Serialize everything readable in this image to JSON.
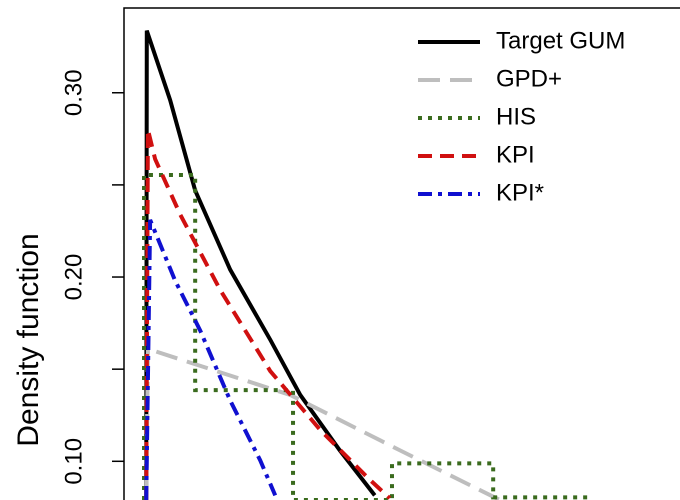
{
  "chart_data": {
    "type": "line",
    "y_label": "Density function",
    "xlim": [
      0,
      10
    ],
    "ylim": [
      0.079,
      0.346
    ],
    "yticks": [
      {
        "value": 0.1,
        "label": "0.10"
      },
      {
        "value": 0.2,
        "label": "0.20"
      },
      {
        "value": 0.3,
        "label": "0.30"
      }
    ],
    "yticks_minor": [
      0.15,
      0.25
    ],
    "legend": "top-right",
    "series": [
      {
        "name": "Target GUM",
        "color": "#000000",
        "dash": "solid",
        "x": [
          0.4,
          0.41,
          0.83,
          1.28,
          1.91,
          2.63,
          3.17,
          3.88,
          4.51
        ],
        "values": [
          0.079,
          0.3337,
          0.296,
          0.247,
          0.204,
          0.166,
          0.136,
          0.106,
          0.0815
        ]
      },
      {
        "name": "GPD+",
        "color": "#bebebe",
        "dash": "long",
        "x": [
          0.4,
          0.43,
          2.99,
          4.96,
          6.76
        ],
        "values": [
          0.079,
          0.161,
          0.136,
          0.106,
          0.079
        ]
      },
      {
        "name": "HIS",
        "color": "#3a6b1e",
        "dash": "dotted",
        "x": [
          0.36,
          0.36,
          1.28,
          1.28,
          3.04,
          3.04,
          4.82,
          4.82,
          6.64,
          6.64,
          8.38
        ],
        "values": [
          0.079,
          0.2554,
          0.2554,
          0.1386,
          0.1386,
          0.079,
          0.079,
          0.0989,
          0.0989,
          0.0804,
          0.0804
        ]
      },
      {
        "name": "KPI",
        "color": "#d01010",
        "dash": "dashed",
        "x": [
          0.4,
          0.43,
          0.56,
          1.01,
          1.73,
          2.63,
          3.53,
          4.42,
          4.78
        ],
        "values": [
          0.079,
          0.28,
          0.264,
          0.234,
          0.193,
          0.149,
          0.117,
          0.09,
          0.08
        ]
      },
      {
        "name": "KPI*",
        "color": "#1010d0",
        "dash": "dotdash",
        "x": [
          0.4,
          0.47,
          0.92,
          1.37,
          1.91,
          2.45,
          2.72
        ],
        "values": [
          0.079,
          0.231,
          0.198,
          0.171,
          0.133,
          0.1005,
          0.0815
        ]
      }
    ]
  }
}
